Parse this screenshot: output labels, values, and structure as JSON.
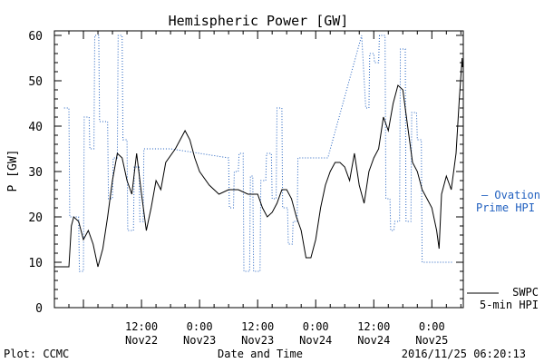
{
  "title": "Hemispheric Power [GW]",
  "chart_data": {
    "type": "line",
    "title": "Hemispheric Power [GW]",
    "ylabel": "P [GW]",
    "xlabel": "Date and Time",
    "ylim": [
      0,
      61
    ],
    "yticks": [
      0,
      10,
      20,
      30,
      40,
      50,
      60
    ],
    "xlim": [
      "2016-11-21 18:00",
      "2016-11-25 06:30"
    ],
    "xticks": [
      {
        "t": "2016-11-22 12:00",
        "top": "12:00",
        "bottom": "Nov22"
      },
      {
        "t": "2016-11-23 00:00",
        "top": "0:00",
        "bottom": "Nov23"
      },
      {
        "t": "2016-11-23 12:00",
        "top": "12:00",
        "bottom": "Nov23"
      },
      {
        "t": "2016-11-24 00:00",
        "top": "0:00",
        "bottom": "Nov24"
      },
      {
        "t": "2016-11-24 12:00",
        "top": "12:00",
        "bottom": "Nov24"
      },
      {
        "t": "2016-11-25 00:00",
        "top": "0:00",
        "bottom": "Nov25"
      }
    ],
    "grid": false,
    "legend_placement": "right",
    "series": [
      {
        "name": "Ovation Prime HPI",
        "legend_lines": [
          "— Ovation",
          "Prime HPI"
        ],
        "color": "#1f5fbf",
        "style": "dotted",
        "points": [
          [
            "2016-11-21 20:00",
            44
          ],
          [
            "2016-11-21 21:00",
            44
          ],
          [
            "2016-11-21 21:10",
            20
          ],
          [
            "2016-11-21 23:00",
            20
          ],
          [
            "2016-11-21 23:10",
            8
          ],
          [
            "2016-11-22 00:00",
            8
          ],
          [
            "2016-11-22 00:10",
            42
          ],
          [
            "2016-11-22 01:10",
            42
          ],
          [
            "2016-11-22 01:20",
            35
          ],
          [
            "2016-11-22 02:10",
            35
          ],
          [
            "2016-11-22 02:20",
            60
          ],
          [
            "2016-11-22 03:10",
            60
          ],
          [
            "2016-11-22 03:20",
            41
          ],
          [
            "2016-11-22 05:00",
            41
          ],
          [
            "2016-11-22 05:10",
            24
          ],
          [
            "2016-11-22 06:00",
            24
          ],
          [
            "2016-11-22 06:10",
            33
          ],
          [
            "2016-11-22 07:00",
            33
          ],
          [
            "2016-11-22 07:10",
            60
          ],
          [
            "2016-11-22 08:00",
            60
          ],
          [
            "2016-11-22 08:10",
            37
          ],
          [
            "2016-11-22 09:00",
            37
          ],
          [
            "2016-11-22 09:10",
            17
          ],
          [
            "2016-11-22 10:20",
            17
          ],
          [
            "2016-11-22 10:30",
            31
          ],
          [
            "2016-11-22 11:30",
            31
          ],
          [
            "2016-11-22 11:40",
            19
          ],
          [
            "2016-11-22 12:20",
            19
          ],
          [
            "2016-11-22 12:30",
            35
          ],
          [
            "2016-11-22 18:00",
            35
          ],
          [
            "2016-11-23 06:00",
            33
          ],
          [
            "2016-11-23 06:10",
            22
          ],
          [
            "2016-11-23 07:00",
            22
          ],
          [
            "2016-11-23 07:10",
            30
          ],
          [
            "2016-11-23 08:00",
            30
          ],
          [
            "2016-11-23 08:10",
            34
          ],
          [
            "2016-11-23 09:00",
            34
          ],
          [
            "2016-11-23 09:10",
            8
          ],
          [
            "2016-11-23 10:20",
            8
          ],
          [
            "2016-11-23 10:30",
            29
          ],
          [
            "2016-11-23 11:00",
            29
          ],
          [
            "2016-11-23 11:10",
            8
          ],
          [
            "2016-11-23 12:30",
            8
          ],
          [
            "2016-11-23 12:40",
            28
          ],
          [
            "2016-11-23 13:40",
            28
          ],
          [
            "2016-11-23 13:50",
            34
          ],
          [
            "2016-11-23 14:50",
            34
          ],
          [
            "2016-11-23 15:00",
            24
          ],
          [
            "2016-11-23 15:50",
            24
          ],
          [
            "2016-11-23 16:00",
            44
          ],
          [
            "2016-11-23 17:00",
            44
          ],
          [
            "2016-11-23 17:10",
            22
          ],
          [
            "2016-11-23 18:10",
            22
          ],
          [
            "2016-11-23 18:20",
            14
          ],
          [
            "2016-11-23 19:10",
            14
          ],
          [
            "2016-11-23 19:20",
            19
          ],
          [
            "2016-11-23 20:10",
            19
          ],
          [
            "2016-11-23 20:20",
            33
          ],
          [
            "2016-11-24 02:30",
            33
          ],
          [
            "2016-11-24 09:30",
            60
          ],
          [
            "2016-11-24 10:20",
            44
          ],
          [
            "2016-11-24 11:00",
            44
          ],
          [
            "2016-11-24 11:10",
            56
          ],
          [
            "2016-11-24 12:00",
            56
          ],
          [
            "2016-11-24 12:10",
            54
          ],
          [
            "2016-11-24 13:00",
            54
          ],
          [
            "2016-11-24 13:10",
            60
          ],
          [
            "2016-11-24 14:20",
            60
          ],
          [
            "2016-11-24 14:30",
            24
          ],
          [
            "2016-11-24 15:20",
            24
          ],
          [
            "2016-11-24 15:30",
            17
          ],
          [
            "2016-11-24 16:10",
            17
          ],
          [
            "2016-11-24 16:20",
            19
          ],
          [
            "2016-11-24 17:20",
            19
          ],
          [
            "2016-11-24 17:30",
            57
          ],
          [
            "2016-11-24 18:30",
            57
          ],
          [
            "2016-11-24 18:40",
            19
          ],
          [
            "2016-11-24 19:40",
            19
          ],
          [
            "2016-11-24 19:50",
            43
          ],
          [
            "2016-11-24 20:50",
            43
          ],
          [
            "2016-11-24 21:00",
            37
          ],
          [
            "2016-11-24 21:50",
            37
          ],
          [
            "2016-11-24 22:00",
            10
          ],
          [
            "2016-11-25 04:30",
            10
          ]
        ]
      },
      {
        "name": "SWPC 5-min HPI",
        "legend_lines": [
          "SWPC",
          "5-min HPI"
        ],
        "color": "#000000",
        "style": "solid",
        "points": [
          [
            "2016-11-21 18:00",
            9
          ],
          [
            "2016-11-21 21:00",
            9
          ],
          [
            "2016-11-21 21:30",
            18
          ],
          [
            "2016-11-21 22:00",
            20
          ],
          [
            "2016-11-21 23:00",
            19
          ],
          [
            "2016-11-22 00:00",
            15
          ],
          [
            "2016-11-22 01:00",
            17
          ],
          [
            "2016-11-22 02:00",
            14
          ],
          [
            "2016-11-22 03:00",
            9
          ],
          [
            "2016-11-22 04:00",
            13
          ],
          [
            "2016-11-22 05:00",
            20
          ],
          [
            "2016-11-22 06:00",
            28
          ],
          [
            "2016-11-22 07:00",
            34
          ],
          [
            "2016-11-22 08:00",
            33
          ],
          [
            "2016-11-22 09:00",
            28
          ],
          [
            "2016-11-22 10:00",
            25
          ],
          [
            "2016-11-22 11:00",
            34
          ],
          [
            "2016-11-22 12:00",
            25
          ],
          [
            "2016-11-22 13:00",
            17
          ],
          [
            "2016-11-22 14:00",
            22
          ],
          [
            "2016-11-22 15:00",
            28
          ],
          [
            "2016-11-22 16:00",
            26
          ],
          [
            "2016-11-22 17:00",
            32
          ],
          [
            "2016-11-22 19:00",
            35
          ],
          [
            "2016-11-22 21:00",
            39
          ],
          [
            "2016-11-22 22:00",
            37
          ],
          [
            "2016-11-22 23:00",
            33
          ],
          [
            "2016-11-23 00:00",
            30
          ],
          [
            "2016-11-23 02:00",
            27
          ],
          [
            "2016-11-23 04:00",
            25
          ],
          [
            "2016-11-23 06:00",
            26
          ],
          [
            "2016-11-23 08:00",
            26
          ],
          [
            "2016-11-23 10:00",
            25
          ],
          [
            "2016-11-23 12:00",
            25
          ],
          [
            "2016-11-23 13:00",
            22
          ],
          [
            "2016-11-23 14:00",
            20
          ],
          [
            "2016-11-23 15:00",
            21
          ],
          [
            "2016-11-23 16:00",
            23
          ],
          [
            "2016-11-23 17:00",
            26
          ],
          [
            "2016-11-23 18:00",
            26
          ],
          [
            "2016-11-23 19:00",
            24
          ],
          [
            "2016-11-23 20:00",
            20
          ],
          [
            "2016-11-23 21:00",
            17
          ],
          [
            "2016-11-23 22:00",
            11
          ],
          [
            "2016-11-23 23:00",
            11
          ],
          [
            "2016-11-24 00:00",
            15
          ],
          [
            "2016-11-24 01:00",
            22
          ],
          [
            "2016-11-24 02:00",
            27
          ],
          [
            "2016-11-24 03:00",
            30
          ],
          [
            "2016-11-24 04:00",
            32
          ],
          [
            "2016-11-24 05:00",
            32
          ],
          [
            "2016-11-24 06:00",
            31
          ],
          [
            "2016-11-24 07:00",
            28
          ],
          [
            "2016-11-24 08:00",
            34
          ],
          [
            "2016-11-24 09:00",
            27
          ],
          [
            "2016-11-24 10:00",
            23
          ],
          [
            "2016-11-24 11:00",
            30
          ],
          [
            "2016-11-24 12:00",
            33
          ],
          [
            "2016-11-24 13:00",
            35
          ],
          [
            "2016-11-24 14:00",
            42
          ],
          [
            "2016-11-24 15:00",
            39
          ],
          [
            "2016-11-24 16:00",
            45
          ],
          [
            "2016-11-24 17:00",
            49
          ],
          [
            "2016-11-24 18:00",
            48
          ],
          [
            "2016-11-24 19:00",
            40
          ],
          [
            "2016-11-24 20:00",
            32
          ],
          [
            "2016-11-24 21:00",
            30
          ],
          [
            "2016-11-24 22:00",
            26
          ],
          [
            "2016-11-24 23:00",
            24
          ],
          [
            "2016-11-25 00:00",
            22
          ],
          [
            "2016-11-25 01:00",
            17
          ],
          [
            "2016-11-25 01:30",
            13
          ],
          [
            "2016-11-25 02:00",
            25
          ],
          [
            "2016-11-25 03:00",
            29
          ],
          [
            "2016-11-25 04:00",
            26
          ],
          [
            "2016-11-25 05:00",
            34
          ],
          [
            "2016-11-25 05:40",
            46
          ],
          [
            "2016-11-25 06:15",
            55
          ],
          [
            "2016-11-25 06:20",
            53
          ]
        ]
      }
    ]
  },
  "footer": {
    "left": "Plot: CCMC",
    "right": "2016/11/25 06:20:13"
  },
  "colors": {
    "ovation": "#1f5fbf",
    "swpc": "#000000",
    "axes": "#000000"
  }
}
